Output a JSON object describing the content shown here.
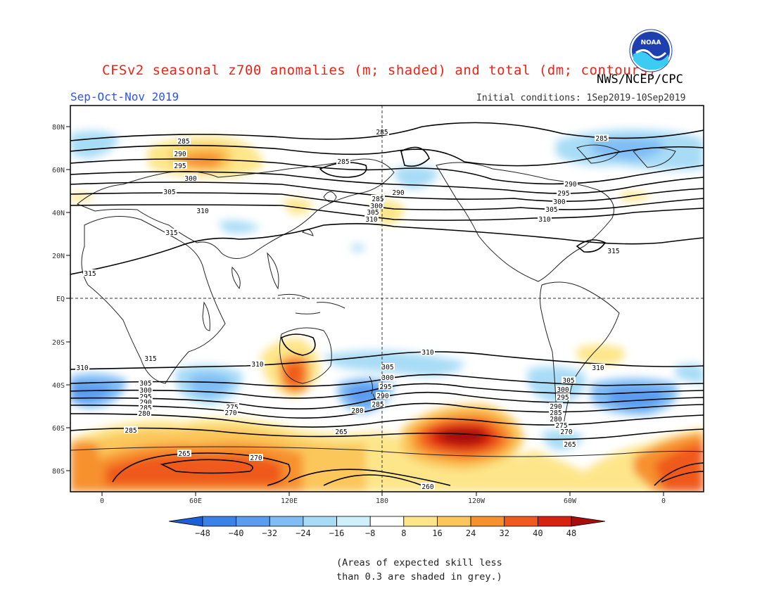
{
  "header": {
    "title": "CFSv2 seasonal z700 anomalies (m; shaded) and total (dm; contours)",
    "org": "NWS/NCEP/CPC",
    "season": "Sep-Oct-Nov 2019",
    "initial_conditions": "Initial conditions: 1Sep2019-10Sep2019",
    "logo_text": "NOAA"
  },
  "axes": {
    "lat_labels": [
      "80N",
      "60N",
      "40N",
      "20N",
      "EQ",
      "20S",
      "40S",
      "60S",
      "80S"
    ],
    "lon_labels": [
      "0",
      "60E",
      "120E",
      "180",
      "120W",
      "60W",
      "0"
    ]
  },
  "colorbar": {
    "ticks": [
      "-48",
      "-40",
      "-32",
      "-24",
      "-16",
      "-8",
      "8",
      "16",
      "24",
      "32",
      "40",
      "48"
    ],
    "colors": [
      "#1c5fd6",
      "#3a82e8",
      "#5b9cf0",
      "#80bdf5",
      "#a8dcf6",
      "#cdf0fa",
      "#ffffff",
      "#fde68a",
      "#fbc65a",
      "#f7912e",
      "#ef5a1f",
      "#d6230f",
      "#a80c0c"
    ]
  },
  "contour_labels": [
    "285",
    "290",
    "295",
    "300",
    "305",
    "310",
    "315",
    "280",
    "275",
    "270",
    "265",
    "260"
  ],
  "footnote": {
    "line1": "(Areas of expected skill less",
    "line2": "than 0.3 are shaded in grey.)"
  }
}
